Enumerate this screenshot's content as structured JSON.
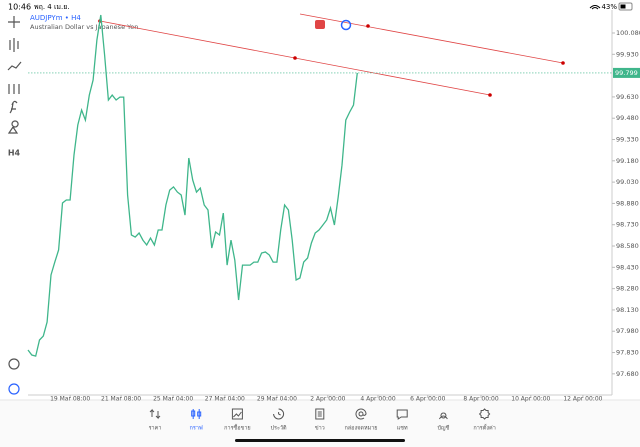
{
  "status_bar": {
    "time": "10:46",
    "date": "พฤ. 4 เม.ย.",
    "battery": "43%"
  },
  "chart_data": {
    "type": "line",
    "title": "AUDJPYm • H4",
    "subtitle": "Australian Dollar vs Japanese Yen",
    "color": "#3fb68b",
    "values": [
      97.848,
      97.813,
      97.805,
      97.918,
      97.946,
      98.045,
      98.376,
      98.467,
      98.552,
      98.883,
      98.904,
      98.904,
      99.221,
      99.432,
      99.538,
      99.467,
      99.643,
      99.749,
      100.031,
      100.207,
      99.925,
      99.608,
      99.643,
      99.608,
      99.629,
      99.629,
      98.939,
      98.658,
      98.643,
      98.672,
      98.622,
      98.587,
      98.636,
      98.587,
      98.693,
      98.693,
      98.869,
      98.974,
      98.996,
      98.96,
      98.939,
      98.798,
      99.2,
      99.045,
      98.96,
      98.988,
      98.869,
      98.834,
      98.566,
      98.679,
      98.658,
      98.812,
      98.446,
      98.622,
      98.481,
      98.2,
      98.446,
      98.446,
      98.446,
      98.467,
      98.467,
      98.531,
      98.538,
      98.517,
      98.467,
      98.467,
      98.693,
      98.869,
      98.834,
      98.622,
      98.341,
      98.355,
      98.467,
      98.496,
      98.601,
      98.672,
      98.693,
      98.728,
      98.763,
      98.848,
      98.728,
      98.925,
      99.15,
      99.467,
      99.524,
      99.573,
      99.799
    ],
    "xlim": [
      0,
      152.5
    ],
    "xticks": [
      {
        "value": 11,
        "label": "19 Mar 08:00"
      },
      {
        "value": 24.3,
        "label": "21 Mar 08:00"
      },
      {
        "value": 37.9,
        "label": "25 Mar 04:00"
      },
      {
        "value": 51.4,
        "label": "27 Mar 04:00"
      },
      {
        "value": 65,
        "label": "29 Mar 04:00"
      },
      {
        "value": 78.3,
        "label": "2 Apr 00:00"
      },
      {
        "value": 91.4,
        "label": "4 Apr 00:00"
      },
      {
        "value": 104.4,
        "label": "6 Apr 00:00"
      },
      {
        "value": 118.3,
        "label": "8 Apr 00:00"
      },
      {
        "value": 131.3,
        "label": "10 Apr 00:00"
      },
      {
        "value": 144.9,
        "label": "12 Apr 00:00"
      }
    ],
    "ylim": [
      97.531,
      100.242
    ],
    "yticks": [
      {
        "value": 100.08,
        "label": "100.080"
      },
      {
        "value": 99.93,
        "label": "99.930"
      },
      {
        "value": 99.63,
        "label": "99.630"
      },
      {
        "value": 99.48,
        "label": "99.480"
      },
      {
        "value": 99.33,
        "label": "99.330"
      },
      {
        "value": 99.18,
        "label": "99.180"
      },
      {
        "value": 99.03,
        "label": "99.030"
      },
      {
        "value": 98.88,
        "label": "98.880"
      },
      {
        "value": 98.73,
        "label": "98.730"
      },
      {
        "value": 98.58,
        "label": "98.580"
      },
      {
        "value": 98.43,
        "label": "98.430"
      },
      {
        "value": 98.28,
        "label": "98.280"
      },
      {
        "value": 98.13,
        "label": "98.130"
      },
      {
        "value": 97.98,
        "label": "97.980"
      },
      {
        "value": 97.83,
        "label": "97.830"
      },
      {
        "value": 97.68,
        "label": "97.680"
      }
    ],
    "current_price": 99.799
  },
  "left_toolbar": {
    "timeframe": "H4"
  },
  "nav": {
    "items": [
      "ราคา",
      "กราฟ",
      "การซื้อขาย",
      "ประวัติ",
      "ข่าว",
      "กล่องจดหมาย",
      "แชท",
      "บัญชี",
      "การตั้งค่า"
    ],
    "active": 1
  }
}
